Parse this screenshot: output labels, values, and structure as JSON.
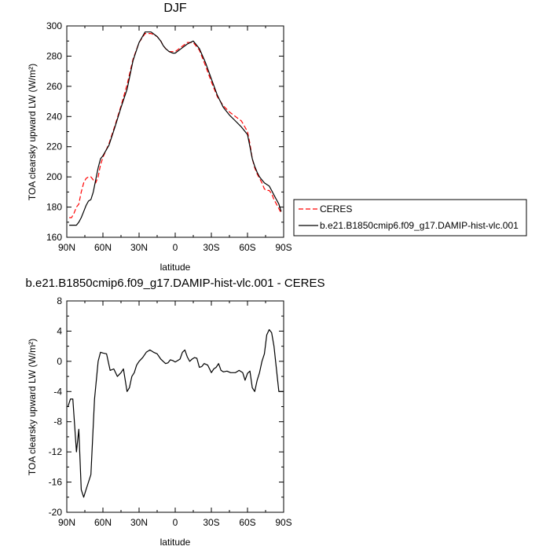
{
  "chart_data": [
    {
      "type": "line",
      "title": "DJF",
      "xlabel": "latitude",
      "ylabel": "TOA clearsky upward LW (W/m²)",
      "xlim": [
        90,
        -90
      ],
      "ylim": [
        160,
        300
      ],
      "yticks": [
        160,
        180,
        200,
        220,
        240,
        260,
        280,
        300
      ],
      "xticks": [
        {
          "value": 90,
          "label": "90N"
        },
        {
          "value": 60,
          "label": "60N"
        },
        {
          "value": 30,
          "label": "30N"
        },
        {
          "value": 0,
          "label": "0"
        },
        {
          "value": -30,
          "label": "30S"
        },
        {
          "value": -60,
          "label": "60S"
        },
        {
          "value": -90,
          "label": "90S"
        }
      ],
      "legend_position": "outside-right",
      "series": [
        {
          "name": "CERES",
          "color": "#ff0000",
          "dash": true,
          "x": [
            88,
            86,
            84,
            82,
            80,
            78,
            76,
            74,
            72,
            70,
            68,
            66,
            64,
            62,
            60,
            55,
            50,
            45,
            40,
            35,
            30,
            25,
            20,
            15,
            12,
            10,
            8,
            5,
            2,
            0,
            -5,
            -10,
            -15,
            -20,
            -25,
            -30,
            -35,
            -40,
            -45,
            -50,
            -55,
            -60,
            -62,
            -64,
            -66,
            -68,
            -70,
            -72,
            -74,
            -76,
            -78,
            -80,
            -82,
            -84,
            -86,
            -88
          ],
          "values": [
            173,
            173,
            176,
            180,
            182,
            190,
            196,
            199,
            200,
            200,
            198,
            196,
            200,
            208,
            213,
            222,
            234,
            247,
            261,
            278,
            289,
            295,
            295,
            293,
            290,
            287,
            285,
            283,
            283,
            283,
            286,
            289,
            289,
            284,
            274,
            263,
            253,
            247,
            243,
            240,
            237,
            230,
            222,
            212,
            206,
            202,
            199,
            196,
            192,
            191,
            191,
            189,
            185,
            182,
            179,
            176
          ]
        },
        {
          "name": "b.e21.B1850cmip6.f09_g17.DAMIP-hist-vlc.001",
          "color": "#000000",
          "dash": false,
          "x": [
            88,
            86,
            84,
            82,
            80,
            78,
            76,
            74,
            72,
            70,
            68,
            66,
            64,
            62,
            60,
            55,
            50,
            45,
            40,
            35,
            30,
            25,
            20,
            15,
            12,
            10,
            8,
            5,
            2,
            0,
            -5,
            -10,
            -15,
            -20,
            -25,
            -30,
            -35,
            -40,
            -45,
            -50,
            -55,
            -60,
            -62,
            -64,
            -66,
            -68,
            -70,
            -72,
            -74,
            -76,
            -78,
            -80,
            -82,
            -84,
            -86,
            -88
          ],
          "values": [
            168,
            168,
            168,
            168,
            170,
            173,
            177,
            181,
            184,
            185,
            190,
            198,
            206,
            212,
            214,
            221,
            233,
            246,
            258,
            277,
            289,
            296,
            296,
            293,
            290,
            287,
            285,
            283,
            282,
            282,
            285,
            288,
            290,
            285,
            276,
            265,
            254,
            246,
            241,
            237,
            233,
            228,
            220,
            212,
            207,
            203,
            200,
            198,
            196,
            195,
            194,
            191,
            188,
            185,
            182,
            177
          ]
        }
      ]
    },
    {
      "type": "line",
      "title": "b.e21.B1850cmip6.f09_g17.DAMIP-hist-vlc.001 - CERES",
      "xlabel": "latitude",
      "ylabel": "TOA clearsky upward LW (W/m²)",
      "xlim": [
        90,
        -90
      ],
      "ylim": [
        -20,
        8
      ],
      "yticks": [
        -20,
        -16,
        -12,
        -8,
        -4,
        0,
        4,
        8
      ],
      "xticks": [
        {
          "value": 90,
          "label": "90N"
        },
        {
          "value": 60,
          "label": "60N"
        },
        {
          "value": 30,
          "label": "30N"
        },
        {
          "value": 0,
          "label": "0"
        },
        {
          "value": -30,
          "label": "30S"
        },
        {
          "value": -60,
          "label": "60S"
        },
        {
          "value": -90,
          "label": "90S"
        }
      ],
      "series": [
        {
          "color": "#000000",
          "dash": false,
          "x": [
            89,
            87,
            85,
            82,
            80,
            78,
            76,
            74,
            70,
            67,
            64,
            62,
            60,
            57,
            54,
            51,
            48,
            45,
            43,
            40,
            38,
            36,
            34,
            32,
            30,
            27,
            24,
            21,
            18,
            15,
            12,
            10,
            8,
            6,
            4,
            2,
            0,
            -2,
            -4,
            -6,
            -8,
            -10,
            -12,
            -14,
            -16,
            -18,
            -20,
            -22,
            -24,
            -27,
            -30,
            -32,
            -34,
            -36,
            -38,
            -40,
            -43,
            -46,
            -50,
            -53,
            -56,
            -58,
            -60,
            -62,
            -64,
            -66,
            -68,
            -70,
            -72,
            -74,
            -76,
            -78,
            -80,
            -82,
            -84,
            -86,
            -88,
            -90
          ],
          "values": [
            -6,
            -5,
            -5,
            -12,
            -9,
            -17,
            -18,
            -17,
            -15,
            -5,
            0,
            1.2,
            1.1,
            1,
            -1.2,
            -1,
            -2,
            -1.5,
            -1,
            -4,
            -3.5,
            -2,
            -1.5,
            -0.5,
            0,
            0.5,
            1.2,
            1.5,
            1.2,
            1,
            0.3,
            0,
            -0.3,
            -0.2,
            0.2,
            0.1,
            -0.1,
            0.1,
            0.3,
            1.2,
            1.5,
            0.6,
            0,
            0.3,
            0.5,
            0.4,
            -0.8,
            -0.7,
            -0.3,
            -0.5,
            -1.5,
            -1,
            -0.8,
            -0.3,
            -1.2,
            -1.4,
            -1.3,
            -1.5,
            -1.5,
            -1.2,
            -1.5,
            -2.5,
            -1.6,
            -1.3,
            -3.5,
            -4,
            -2.5,
            -1.5,
            0,
            1,
            3.5,
            4.2,
            3.8,
            2,
            -1,
            -4,
            -4,
            -4
          ]
        }
      ]
    }
  ]
}
